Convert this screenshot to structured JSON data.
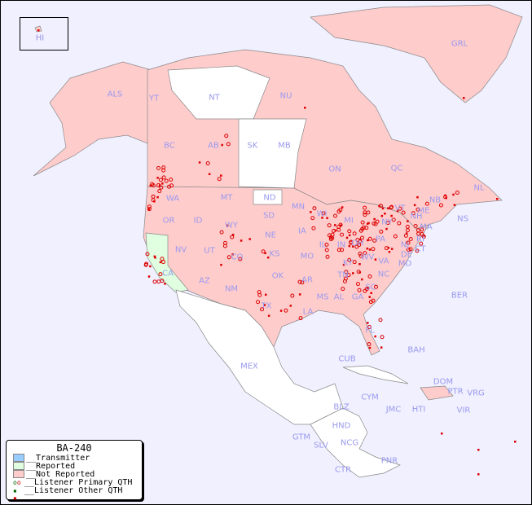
{
  "legend": {
    "title": "BA-240",
    "items": [
      {
        "label": "__Transmitter",
        "color": "#99ccff"
      },
      {
        "label": "__Reported",
        "color": "#e0ffe0"
      },
      {
        "label": "__Not Reported",
        "color": "#ffcccc"
      },
      {
        "label": "__Listener Primary QTH",
        "color": "#cc0000"
      },
      {
        "label": "__Listener Other QTH",
        "color": "#cc0000"
      }
    ]
  },
  "colors": {
    "water": "#f0f0ff",
    "not_reported": "#ffcccc",
    "reported": "#e0ffe0",
    "unlisted": "#ffffff",
    "label": "#9999ee",
    "dot": "#dd0000"
  },
  "labels": [
    "HI",
    "GRL",
    "ALS",
    "YT",
    "NT",
    "NU",
    "BC",
    "AB",
    "SK",
    "MB",
    "ON",
    "QC",
    "NL",
    "WA",
    "MT",
    "ND",
    "MN",
    "WI",
    "MI",
    "NB",
    "NS",
    "ME",
    "VT",
    "NH",
    "NY",
    "OR",
    "ID",
    "WY",
    "SD",
    "IA",
    "IL",
    "IN",
    "OH",
    "PA",
    "NJ",
    "MA",
    "RI",
    "CT",
    "NV",
    "UT",
    "CO",
    "NE",
    "KS",
    "MO",
    "KY",
    "WV",
    "VA",
    "MD",
    "DE",
    "CA",
    "AZ",
    "NM",
    "OK",
    "AR",
    "TN",
    "NC",
    "SC",
    "MS",
    "AL",
    "GA",
    "TX",
    "LA",
    "FL",
    "BER",
    "BAH",
    "CUB",
    "MEX",
    "DOM",
    "PTR",
    "VRG",
    "CYM",
    "JMC",
    "HTI",
    "VIR",
    "BLZ",
    "HND",
    "GTM",
    "SLV",
    "NCG",
    "CTR",
    "PNR"
  ]
}
